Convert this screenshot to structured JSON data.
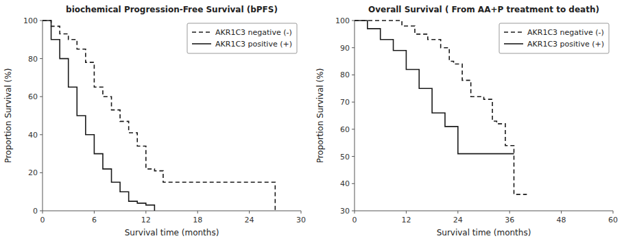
{
  "chart_data": [
    {
      "type": "step",
      "title": "biochemical Progression-Free Survival (bPFS)",
      "x_label": "Survival time (months)",
      "y_label": "Proportion Survival (%)",
      "xlim": [
        0,
        30
      ],
      "ylim": [
        0,
        100
      ],
      "xticks": [
        0,
        6,
        12,
        18,
        24,
        30
      ],
      "yticks": [
        0,
        20,
        40,
        60,
        80,
        100
      ],
      "grid": false,
      "legend": "upper-right",
      "series": [
        {
          "name": "AKR1C3 negative (-)",
          "color": "#1a1a1a",
          "line_style": "dashed",
          "x": [
            0,
            1,
            2,
            3,
            4,
            5,
            6,
            7,
            8,
            9,
            10,
            11,
            12,
            13,
            14,
            26,
            27
          ],
          "values": [
            100,
            97,
            93,
            90,
            85,
            78,
            65,
            60,
            53,
            47,
            41,
            34,
            22,
            21,
            15,
            15,
            0
          ]
        },
        {
          "name": "AKR1C3 positive (+)",
          "color": "#1a1a1a",
          "line_style": "solid",
          "x": [
            0,
            1,
            2,
            3,
            4,
            5,
            6,
            7,
            8,
            9,
            10,
            11,
            12,
            13
          ],
          "values": [
            100,
            90,
            80,
            65,
            50,
            40,
            30,
            22,
            15,
            10,
            5,
            4,
            3,
            0
          ]
        }
      ]
    },
    {
      "type": "step",
      "title": "Overall Survival ( From AA+P treatment to death)",
      "x_label": "Survival time (months)",
      "y_label": "Proportion Survival (%)",
      "xlim": [
        0,
        60
      ],
      "ylim": [
        30,
        100
      ],
      "xticks": [
        0,
        12,
        24,
        36,
        48,
        60
      ],
      "yticks": [
        30,
        40,
        50,
        60,
        70,
        80,
        90,
        100
      ],
      "grid": false,
      "legend": "upper-right",
      "series": [
        {
          "name": "AKR1C3 negative (-)",
          "color": "#1a1a1a",
          "line_style": "dashed",
          "x": [
            0,
            4,
            8,
            11,
            14,
            17,
            20,
            22,
            23,
            25,
            27,
            30,
            32,
            33,
            35,
            36,
            37,
            40
          ],
          "values": [
            100,
            100,
            100,
            98,
            95,
            93,
            90,
            85,
            84,
            78,
            72,
            71,
            63,
            62,
            54,
            54,
            36,
            36
          ]
        },
        {
          "name": "AKR1C3 positive (+)",
          "color": "#1a1a1a",
          "line_style": "solid",
          "x": [
            0,
            3,
            6,
            9,
            12,
            15,
            18,
            21,
            23,
            24,
            37
          ],
          "values": [
            100,
            97,
            93,
            89,
            82,
            75,
            66,
            61,
            61,
            51,
            51
          ]
        }
      ]
    }
  ]
}
